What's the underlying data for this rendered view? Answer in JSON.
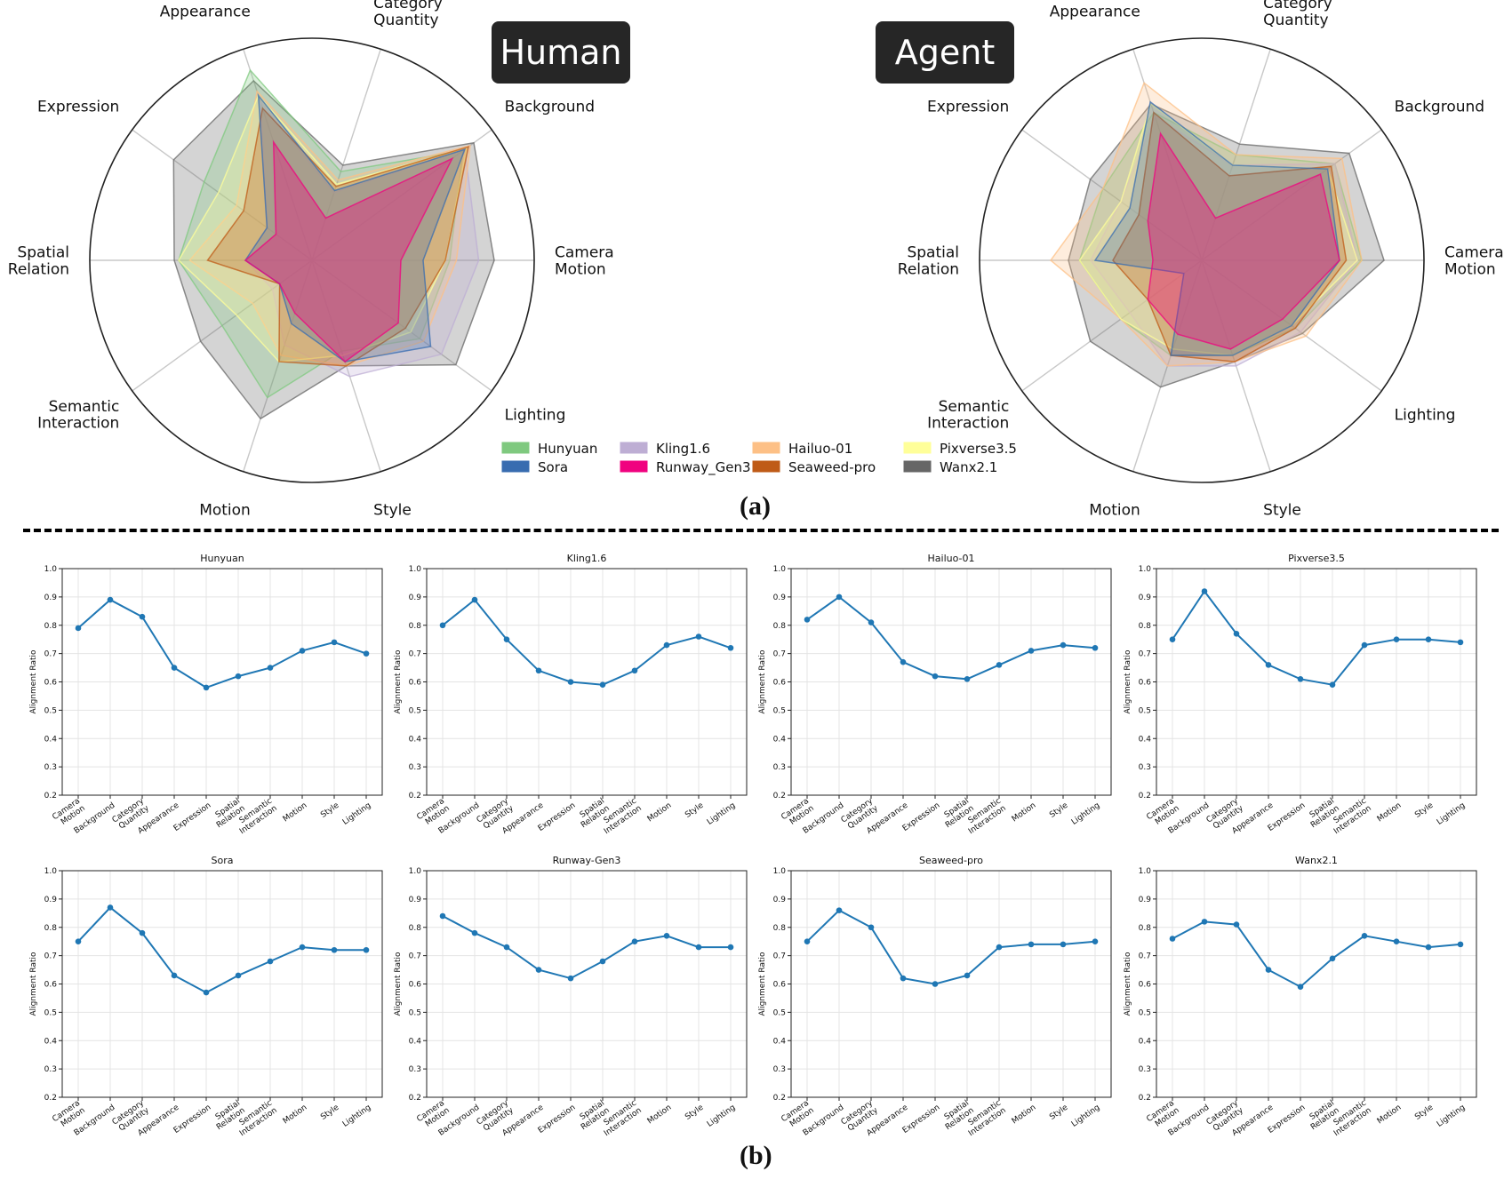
{
  "panel_a_label": "(a)",
  "panel_b_label": "(b)",
  "radar": {
    "axes": [
      "Camera\nMotion",
      "Background",
      "Category\nQuantity",
      "Appearance",
      "Expression",
      "Spatial\nRelation",
      "Semantic\nInteraction",
      "Motion",
      "Style",
      "Lighting"
    ],
    "charts": [
      {
        "title": "Human"
      },
      {
        "title": "Agent"
      }
    ],
    "legend": [
      {
        "name": "Hunyuan",
        "color": "#7fc97f"
      },
      {
        "name": "Kling1.6",
        "color": "#beaed4"
      },
      {
        "name": "Hailuo-01",
        "color": "#fdc086"
      },
      {
        "name": "Pixverse3.5",
        "color": "#ffff99"
      },
      {
        "name": "Sora",
        "color": "#386cb0"
      },
      {
        "name": "Runway_Gen3",
        "color": "#f0027f"
      },
      {
        "name": "Seaweed-pro",
        "color": "#bf5b17"
      },
      {
        "name": "Wanx2.1",
        "color": "#666666"
      }
    ]
  },
  "chart_data": [
    {
      "type": "radar",
      "title": "Human",
      "categories": [
        "Camera Motion",
        "Background",
        "Category Quantity",
        "Appearance",
        "Expression",
        "Spatial Relation",
        "Semantic Interaction",
        "Motion",
        "Style",
        "Lighting"
      ],
      "series": [
        {
          "name": "Wanx2.1",
          "values": [
            0.82,
            0.9,
            0.45,
            0.85,
            0.77,
            0.62,
            0.62,
            0.75,
            0.5,
            0.8
          ]
        },
        {
          "name": "Hunyuan",
          "values": [
            0.62,
            0.84,
            0.42,
            0.9,
            0.6,
            0.6,
            0.5,
            0.65,
            0.43,
            0.6
          ]
        },
        {
          "name": "Kling1.6",
          "values": [
            0.75,
            0.85,
            0.32,
            0.75,
            0.25,
            0.3,
            0.22,
            0.4,
            0.55,
            0.72
          ]
        },
        {
          "name": "Hailuo-01",
          "values": [
            0.65,
            0.88,
            0.38,
            0.8,
            0.42,
            0.55,
            0.33,
            0.45,
            0.5,
            0.62
          ]
        },
        {
          "name": "Pixverse3.5",
          "values": [
            0.6,
            0.86,
            0.36,
            0.78,
            0.52,
            0.6,
            0.42,
            0.48,
            0.45,
            0.55
          ]
        },
        {
          "name": "Seaweed-pro",
          "values": [
            0.6,
            0.87,
            0.35,
            0.72,
            0.38,
            0.47,
            0.18,
            0.48,
            0.5,
            0.52
          ]
        },
        {
          "name": "Sora",
          "values": [
            0.5,
            0.85,
            0.33,
            0.78,
            0.25,
            0.3,
            0.18,
            0.3,
            0.48,
            0.66
          ]
        },
        {
          "name": "Runway_Gen3",
          "values": [
            0.4,
            0.78,
            0.2,
            0.56,
            0.2,
            0.3,
            0.18,
            0.25,
            0.48,
            0.48
          ]
        }
      ],
      "ylim": [
        0,
        1
      ]
    },
    {
      "type": "radar",
      "title": "Agent",
      "categories": [
        "Camera Motion",
        "Background",
        "Category Quantity",
        "Appearance",
        "Expression",
        "Spatial Relation",
        "Semantic Interaction",
        "Motion",
        "Style",
        "Lighting"
      ],
      "series": [
        {
          "name": "Wanx2.1",
          "values": [
            0.82,
            0.82,
            0.55,
            0.74,
            0.62,
            0.6,
            0.62,
            0.6,
            0.48,
            0.56
          ]
        },
        {
          "name": "Hunyuan",
          "values": [
            0.72,
            0.74,
            0.5,
            0.7,
            0.55,
            0.55,
            0.45,
            0.45,
            0.45,
            0.52
          ]
        },
        {
          "name": "Kling1.6",
          "values": [
            0.7,
            0.74,
            0.45,
            0.68,
            0.45,
            0.5,
            0.4,
            0.5,
            0.5,
            0.55
          ]
        },
        {
          "name": "Hailuo-01",
          "values": [
            0.72,
            0.78,
            0.5,
            0.84,
            0.55,
            0.68,
            0.45,
            0.5,
            0.48,
            0.58
          ]
        },
        {
          "name": "Pixverse3.5",
          "values": [
            0.7,
            0.7,
            0.45,
            0.74,
            0.45,
            0.55,
            0.45,
            0.42,
            0.45,
            0.5
          ]
        },
        {
          "name": "Seaweed-pro",
          "values": [
            0.65,
            0.72,
            0.4,
            0.7,
            0.35,
            0.4,
            0.3,
            0.45,
            0.48,
            0.52
          ]
        },
        {
          "name": "Sora",
          "values": [
            0.62,
            0.7,
            0.45,
            0.75,
            0.4,
            0.48,
            0.1,
            0.45,
            0.45,
            0.5
          ]
        },
        {
          "name": "Runway_Gen3",
          "values": [
            0.62,
            0.66,
            0.2,
            0.6,
            0.3,
            0.22,
            0.3,
            0.35,
            0.42,
            0.45
          ]
        }
      ],
      "ylim": [
        0,
        1
      ]
    },
    {
      "type": "line",
      "title": "Hunyuan",
      "ylabel": "Alignment Ratio",
      "categories": [
        "Camera\nMotion",
        "Background",
        "Category\nQuantity",
        "Appearance",
        "Expression",
        "Spatial\nRelation",
        "Semantic\nInteraction",
        "Motion",
        "Style",
        "Lighting"
      ],
      "values": [
        0.79,
        0.89,
        0.83,
        0.65,
        0.58,
        0.62,
        0.65,
        0.71,
        0.74,
        0.7
      ],
      "ylim": [
        0.2,
        1.0
      ],
      "yticks": [
        "0.2",
        "0.3",
        "0.4",
        "0.5",
        "0.6",
        "0.7",
        "0.8",
        "0.9",
        "1.0"
      ],
      "grid": true
    },
    {
      "type": "line",
      "title": "Kling1.6",
      "ylabel": "Alignment Ratio",
      "categories": [
        "Camera\nMotion",
        "Background",
        "Category\nQuantity",
        "Appearance",
        "Expression",
        "Spatial\nRelation",
        "Semantic\nInteraction",
        "Motion",
        "Style",
        "Lighting"
      ],
      "values": [
        0.8,
        0.89,
        0.75,
        0.64,
        0.6,
        0.59,
        0.64,
        0.73,
        0.76,
        0.72
      ],
      "ylim": [
        0.2,
        1.0
      ],
      "yticks": [
        "0.2",
        "0.3",
        "0.4",
        "0.5",
        "0.6",
        "0.7",
        "0.8",
        "0.9",
        "1.0"
      ],
      "grid": true
    },
    {
      "type": "line",
      "title": "Hailuo-01",
      "ylabel": "Alignment Ratio",
      "categories": [
        "Camera\nMotion",
        "Background",
        "Category\nQuantity",
        "Appearance",
        "Expression",
        "Spatial\nRelation",
        "Semantic\nInteraction",
        "Motion",
        "Style",
        "Lighting"
      ],
      "values": [
        0.82,
        0.9,
        0.81,
        0.67,
        0.62,
        0.61,
        0.66,
        0.71,
        0.73,
        0.72
      ],
      "ylim": [
        0.2,
        1.0
      ],
      "yticks": [
        "0.2",
        "0.3",
        "0.4",
        "0.5",
        "0.6",
        "0.7",
        "0.8",
        "0.9",
        "1.0"
      ],
      "grid": true
    },
    {
      "type": "line",
      "title": "Pixverse3.5",
      "ylabel": "Alignment Ratio",
      "categories": [
        "Camera\nMotion",
        "Background",
        "Category\nQuantity",
        "Appearance",
        "Expression",
        "Spatial\nRelation",
        "Semantic\nInteraction",
        "Motion",
        "Style",
        "Lighting"
      ],
      "values": [
        0.75,
        0.92,
        0.77,
        0.66,
        0.61,
        0.59,
        0.73,
        0.75,
        0.75,
        0.74
      ],
      "ylim": [
        0.2,
        1.0
      ],
      "yticks": [
        "0.2",
        "0.3",
        "0.4",
        "0.5",
        "0.6",
        "0.7",
        "0.8",
        "0.9",
        "1.0"
      ],
      "grid": true
    },
    {
      "type": "line",
      "title": "Sora",
      "ylabel": "Alignment Ratio",
      "categories": [
        "Camera\nMotion",
        "Background",
        "Category\nQuantity",
        "Appearance",
        "Expression",
        "Spatial\nRelation",
        "Semantic\nInteraction",
        "Motion",
        "Style",
        "Lighting"
      ],
      "values": [
        0.75,
        0.87,
        0.78,
        0.63,
        0.57,
        0.63,
        0.68,
        0.73,
        0.72,
        0.72
      ],
      "ylim": [
        0.2,
        1.0
      ],
      "yticks": [
        "0.2",
        "0.3",
        "0.4",
        "0.5",
        "0.6",
        "0.7",
        "0.8",
        "0.9",
        "1.0"
      ],
      "grid": true
    },
    {
      "type": "line",
      "title": "Runway-Gen3",
      "ylabel": "Alignment Ratio",
      "categories": [
        "Camera\nMotion",
        "Background",
        "Category\nQuantity",
        "Appearance",
        "Expression",
        "Spatial\nRelation",
        "Semantic\nInteraction",
        "Motion",
        "Style",
        "Lighting"
      ],
      "values": [
        0.84,
        0.78,
        0.73,
        0.65,
        0.62,
        0.68,
        0.75,
        0.77,
        0.73,
        0.73
      ],
      "ylim": [
        0.2,
        1.0
      ],
      "yticks": [
        "0.2",
        "0.3",
        "0.4",
        "0.5",
        "0.6",
        "0.7",
        "0.8",
        "0.9",
        "1.0"
      ],
      "grid": true
    },
    {
      "type": "line",
      "title": "Seaweed-pro",
      "ylabel": "Alignment Ratio",
      "categories": [
        "Camera\nMotion",
        "Background",
        "Category\nQuantity",
        "Appearance",
        "Expression",
        "Spatial\nRelation",
        "Semantic\nInteraction",
        "Motion",
        "Style",
        "Lighting"
      ],
      "values": [
        0.75,
        0.86,
        0.8,
        0.62,
        0.6,
        0.63,
        0.73,
        0.74,
        0.74,
        0.75
      ],
      "ylim": [
        0.2,
        1.0
      ],
      "yticks": [
        "0.2",
        "0.3",
        "0.4",
        "0.5",
        "0.6",
        "0.7",
        "0.8",
        "0.9",
        "1.0"
      ],
      "grid": true
    },
    {
      "type": "line",
      "title": "Wanx2.1",
      "ylabel": "Alignment Ratio",
      "categories": [
        "Camera\nMotion",
        "Background",
        "Category\nQuantity",
        "Appearance",
        "Expression",
        "Spatial\nRelation",
        "Semantic\nInteraction",
        "Motion",
        "Style",
        "Lighting"
      ],
      "values": [
        0.76,
        0.82,
        0.81,
        0.65,
        0.59,
        0.69,
        0.77,
        0.75,
        0.73,
        0.74
      ],
      "ylim": [
        0.2,
        1.0
      ],
      "yticks": [
        "0.2",
        "0.3",
        "0.4",
        "0.5",
        "0.6",
        "0.7",
        "0.8",
        "0.9",
        "1.0"
      ],
      "grid": true
    }
  ]
}
